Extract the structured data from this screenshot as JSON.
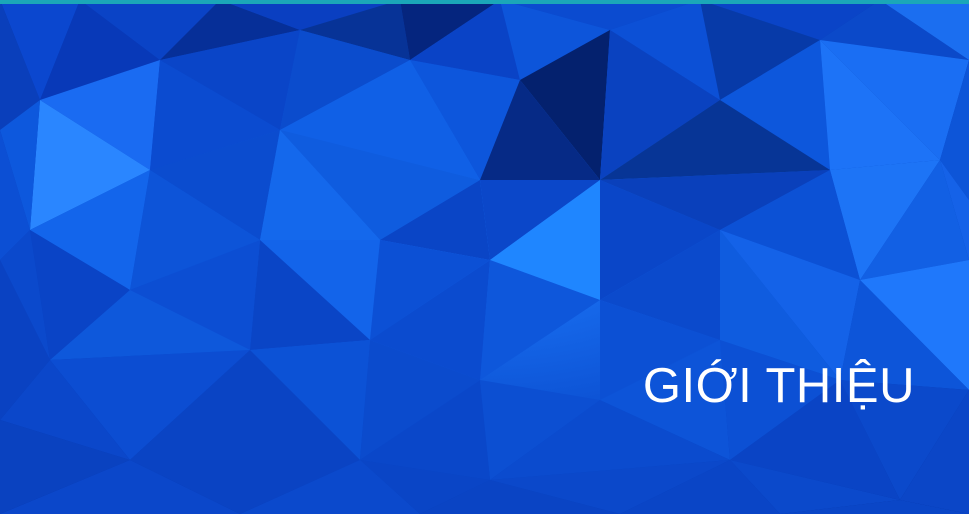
{
  "banner": {
    "title": "GIỚI THIỆU",
    "colors": {
      "accent_strip": "#1ba7b8",
      "base_blue": "#0b49c8",
      "light_blue": "#2f8cff",
      "dark_blue": "#06278c",
      "text": "#ffffff"
    },
    "background_pattern": "low-poly-blue-triangles"
  }
}
